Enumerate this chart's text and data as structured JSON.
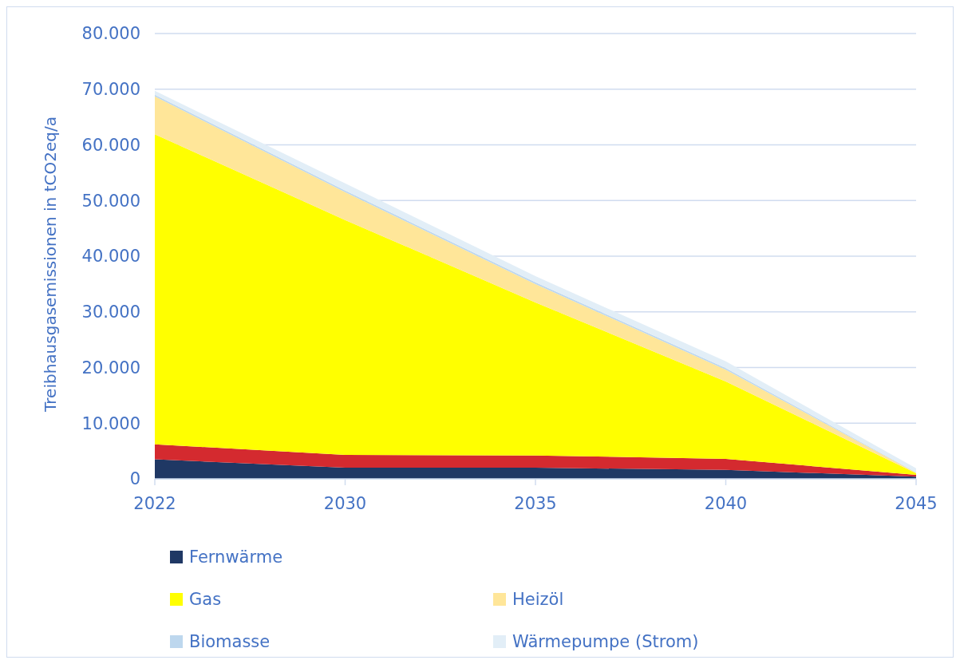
{
  "chart_data": {
    "type": "area",
    "stacked": true,
    "ylabel": "Treibhausgasemissionen in tCO2eq/a",
    "categories": [
      "2022",
      "2030",
      "2035",
      "2040",
      "2045"
    ],
    "series": [
      {
        "name": "Fernwärme",
        "color": "#1f3864",
        "values": [
          3500,
          2000,
          2000,
          1600,
          400
        ]
      },
      {
        "color": "#d42a2f",
        "values": [
          2700,
          2300,
          2200,
          2000,
          300
        ]
      },
      {
        "name": "Gas",
        "color": "#ffff00",
        "values": [
          55700,
          42200,
          27500,
          13900,
          300
        ]
      },
      {
        "name": "Heizöl",
        "color": "#ffe699",
        "values": [
          6800,
          5000,
          3300,
          2100,
          100
        ]
      },
      {
        "name": "Biomasse",
        "color": "#bdd7ee",
        "values": [
          300,
          300,
          300,
          300,
          100
        ]
      },
      {
        "name": "Wärmepumpe (Strom)",
        "color": "#e2eef7",
        "values": [
          700,
          1300,
          1100,
          1200,
          700
        ]
      }
    ],
    "ylim": [
      0,
      80000
    ],
    "yticks": [
      {
        "value": 0,
        "label": "0"
      },
      {
        "value": 10000,
        "label": "10.000"
      },
      {
        "value": 20000,
        "label": "20.000"
      },
      {
        "value": 30000,
        "label": "30.000"
      },
      {
        "value": 40000,
        "label": "40.000"
      },
      {
        "value": 50000,
        "label": "50.000"
      },
      {
        "value": 60000,
        "label": "60.000"
      },
      {
        "value": 70000,
        "label": "70.000"
      },
      {
        "value": 80000,
        "label": "80.000"
      }
    ],
    "grid": "y",
    "legend": "bottom"
  }
}
